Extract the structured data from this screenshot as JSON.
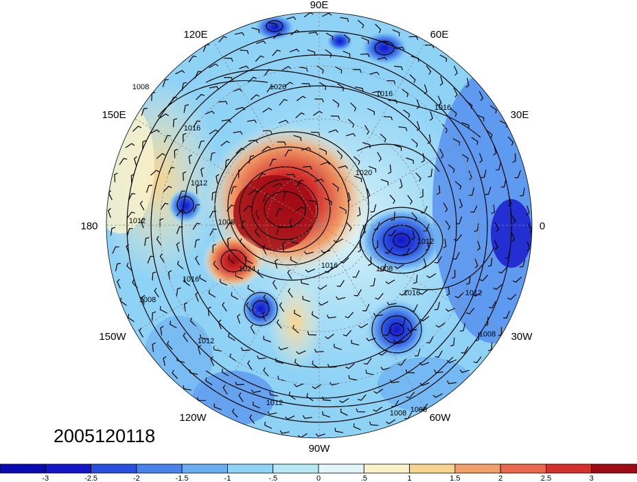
{
  "timestamp": "2005120118",
  "longitude_labels": {
    "deg90e": "90E",
    "deg60e": "60E",
    "deg30e": "30E",
    "deg0": "0",
    "deg30w": "30W",
    "deg60w": "60W",
    "deg90w": "90W",
    "deg120w": "120W",
    "deg150w": "150W",
    "deg180": "180",
    "deg150e": "150E",
    "deg120e": "120E"
  },
  "contour_labels": [
    "1020",
    "1016",
    "1012",
    "1008",
    "1016",
    "1012",
    "1008",
    "1016",
    "1012",
    "1008",
    "1020",
    "1016",
    "1012",
    "1008",
    "1012",
    "1008",
    "1008",
    "1016",
    "1012",
    "1016",
    "1008",
    "1024"
  ],
  "colorbar": {
    "ticks": [
      "-3",
      "-2.5",
      "-2",
      "-1.5",
      "-1",
      "-.5",
      "0",
      ".5",
      "1",
      "1.5",
      "2",
      "2.5",
      "3"
    ],
    "colors": [
      "#1414c8",
      "#2850e0",
      "#4a82ec",
      "#6aaef2",
      "#8ed2f6",
      "#b8e8f6",
      "#e2f6f8",
      "#fbf2cc",
      "#f9d48e",
      "#f2a06a",
      "#e9684e",
      "#d4302c",
      "#a00a14"
    ]
  }
}
